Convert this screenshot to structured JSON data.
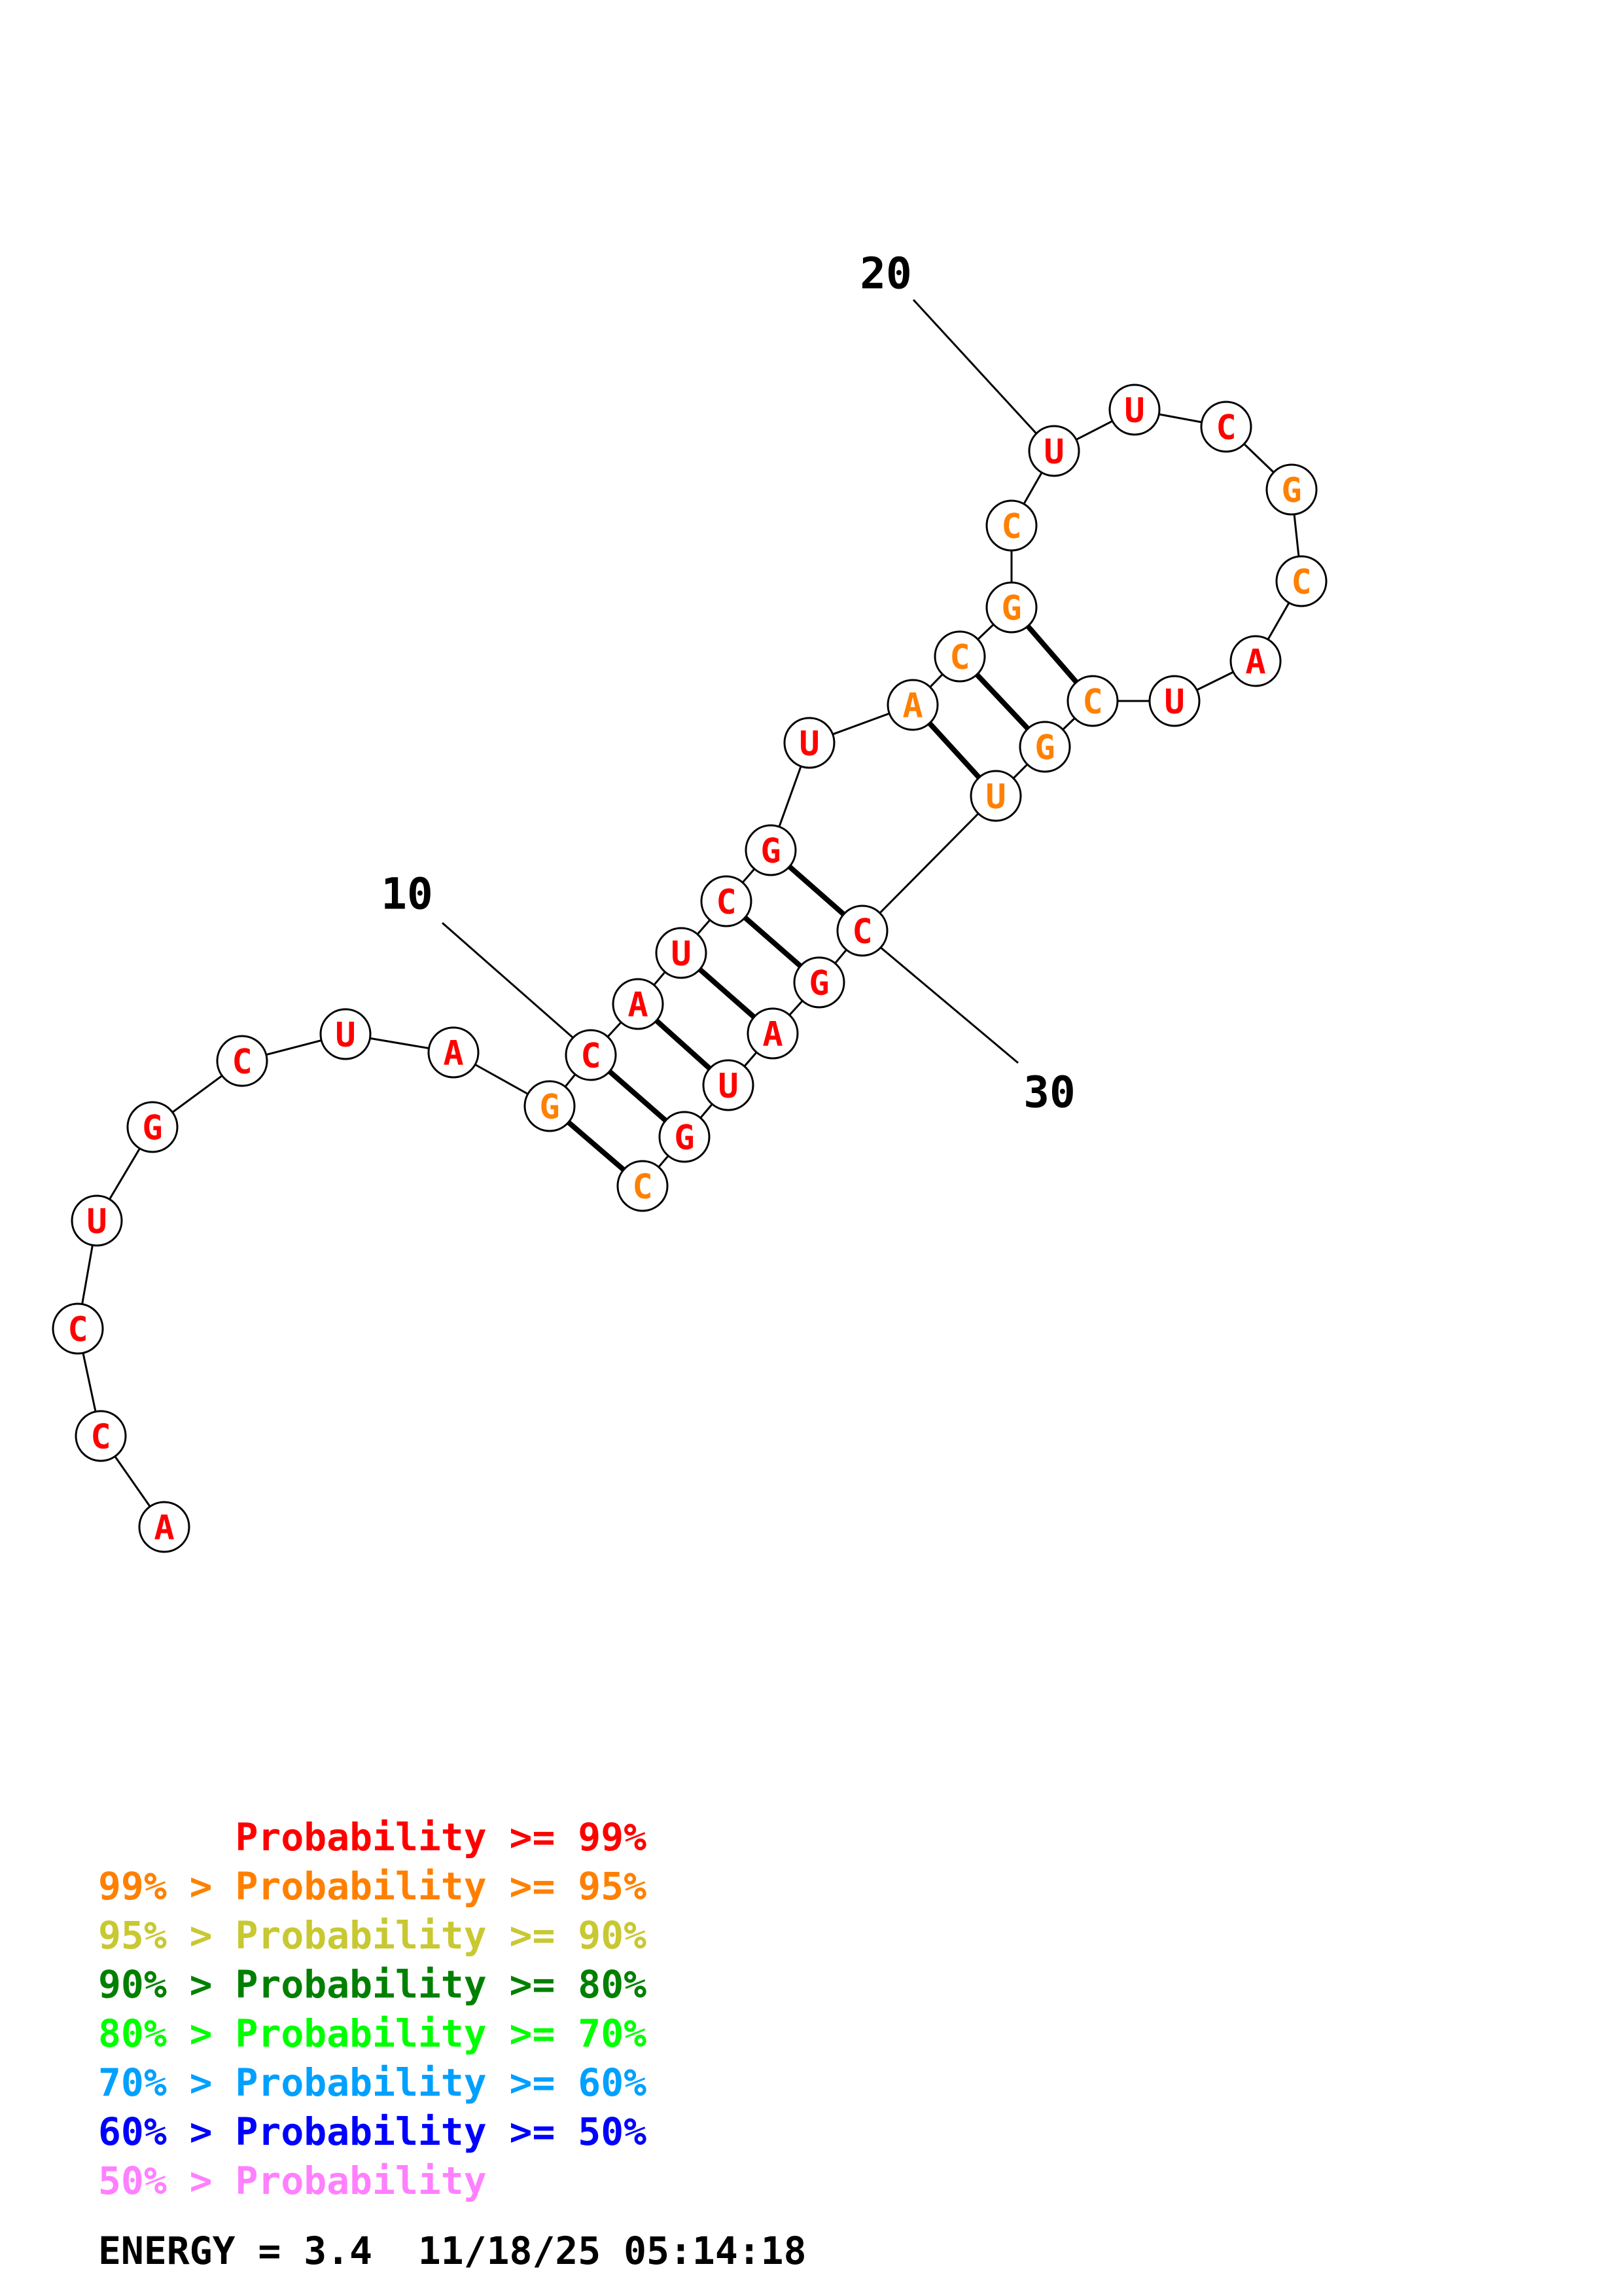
{
  "colors": {
    "p99": "#ff0000",
    "p95": "#ff8000",
    "p90": "#c8c832",
    "p80": "#008000",
    "p70": "#00ff00",
    "p60": "#00a0ff",
    "p50": "#0000ff",
    "low": "#ff80ff"
  },
  "sequence": [
    {
      "base": "A",
      "color": "p99"
    },
    {
      "base": "C",
      "color": "p99"
    },
    {
      "base": "C",
      "color": "p99"
    },
    {
      "base": "U",
      "color": "p99"
    },
    {
      "base": "G",
      "color": "p99"
    },
    {
      "base": "C",
      "color": "p99"
    },
    {
      "base": "U",
      "color": "p99"
    },
    {
      "base": "A",
      "color": "p99"
    },
    {
      "base": "G",
      "color": "p95"
    },
    {
      "base": "C",
      "color": "p99"
    },
    {
      "base": "A",
      "color": "p99"
    },
    {
      "base": "U",
      "color": "p99"
    },
    {
      "base": "C",
      "color": "p99"
    },
    {
      "base": "G",
      "color": "p99"
    },
    {
      "base": "U",
      "color": "p99"
    },
    {
      "base": "A",
      "color": "p95"
    },
    {
      "base": "C",
      "color": "p95"
    },
    {
      "base": "G",
      "color": "p95"
    },
    {
      "base": "C",
      "color": "p95"
    },
    {
      "base": "U",
      "color": "p99"
    },
    {
      "base": "U",
      "color": "p99"
    },
    {
      "base": "C",
      "color": "p99"
    },
    {
      "base": "G",
      "color": "p95"
    },
    {
      "base": "C",
      "color": "p95"
    },
    {
      "base": "A",
      "color": "p99"
    },
    {
      "base": "U",
      "color": "p99"
    },
    {
      "base": "C",
      "color": "p95"
    },
    {
      "base": "G",
      "color": "p95"
    },
    {
      "base": "U",
      "color": "p95"
    },
    {
      "base": "C",
      "color": "p99"
    },
    {
      "base": "G",
      "color": "p99"
    },
    {
      "base": "A",
      "color": "p99"
    },
    {
      "base": "U",
      "color": "p99"
    },
    {
      "base": "G",
      "color": "p99"
    },
    {
      "base": "C",
      "color": "p95"
    }
  ],
  "pairs": [
    [
      9,
      35
    ],
    [
      10,
      34
    ],
    [
      11,
      33
    ],
    [
      12,
      32
    ],
    [
      13,
      31
    ],
    [
      14,
      30
    ],
    [
      16,
      29
    ],
    [
      17,
      28
    ],
    [
      18,
      27
    ]
  ],
  "position_labels": [
    {
      "index": 10,
      "text": "10"
    },
    {
      "index": 20,
      "text": "20"
    },
    {
      "index": 30,
      "text": "30"
    }
  ],
  "legend": [
    {
      "prefix": "",
      "text": "Probability >= 99%",
      "color": "p99"
    },
    {
      "prefix": "99% > ",
      "text": "Probability >= 95%",
      "color": "p95"
    },
    {
      "prefix": "95% > ",
      "text": "Probability >= 90%",
      "color": "p90"
    },
    {
      "prefix": "90% > ",
      "text": "Probability >= 80%",
      "color": "p80"
    },
    {
      "prefix": "80% > ",
      "text": "Probability >= 70%",
      "color": "p70"
    },
    {
      "prefix": "70% > ",
      "text": "Probability >= 60%",
      "color": "p60"
    },
    {
      "prefix": "60% > ",
      "text": "Probability >= 50%",
      "color": "p50"
    },
    {
      "prefix": "50% > ",
      "text": "Probability",
      "color": "low"
    }
  ],
  "footer": {
    "energy": "ENERGY = 3.4",
    "timestamp": "11/18/25 05:14:18"
  }
}
